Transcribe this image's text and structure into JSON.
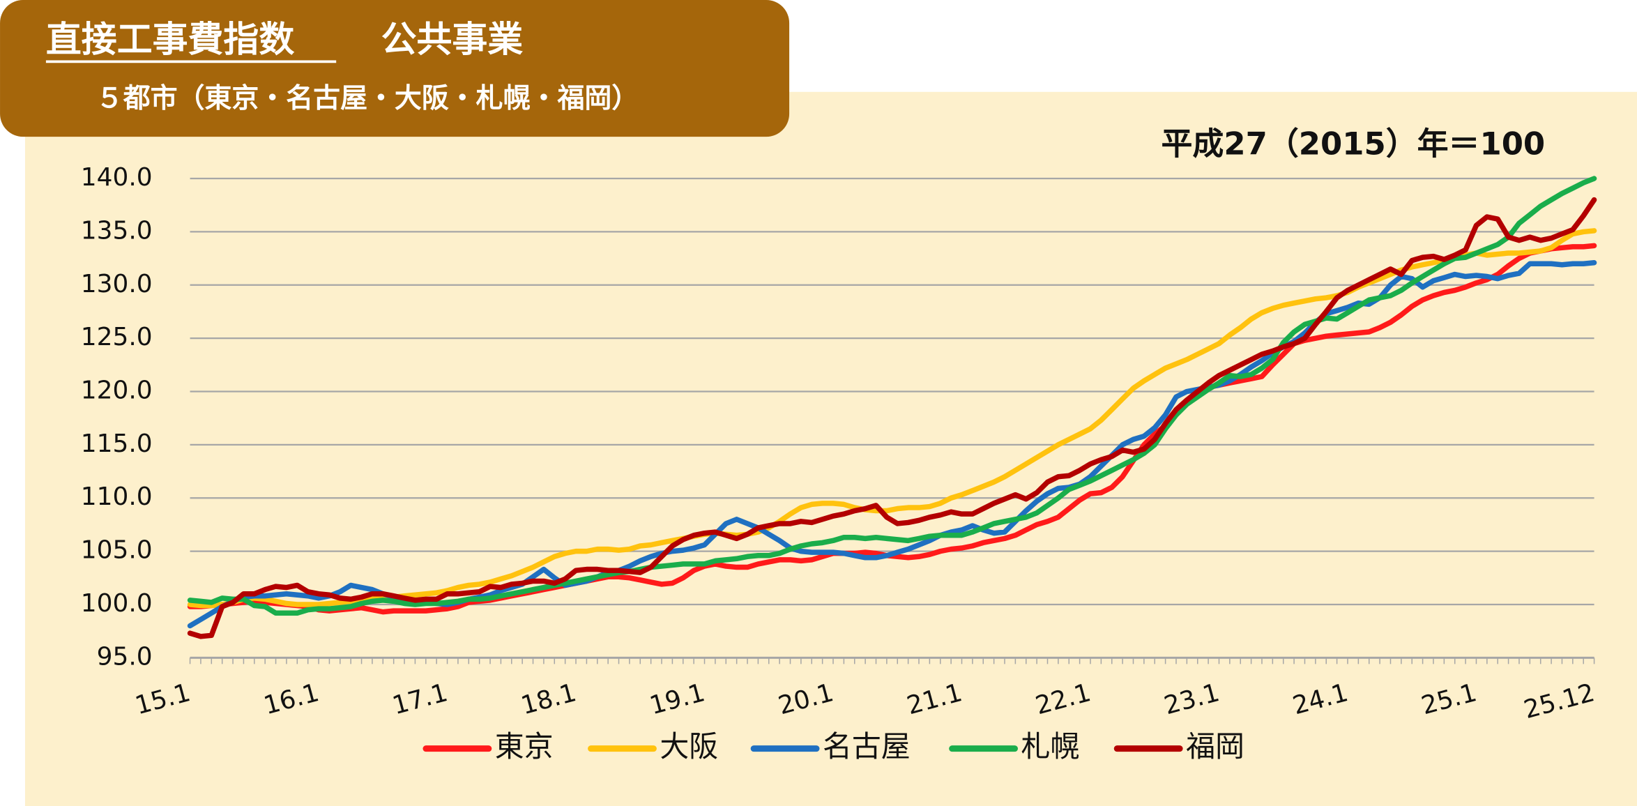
{
  "header": {
    "title": "直接工事費指数",
    "subtitle": "公共事業",
    "cities": "５都市（東京・名古屋・大阪・札幌・福岡）"
  },
  "chart_data": {
    "type": "line",
    "note": "平成27（2015）年＝100",
    "categories": [
      "15.1",
      null,
      null,
      null,
      null,
      null,
      null,
      null,
      null,
      null,
      null,
      null,
      "16.1",
      null,
      null,
      null,
      null,
      null,
      null,
      null,
      null,
      null,
      null,
      null,
      "17.1",
      null,
      null,
      null,
      null,
      null,
      null,
      null,
      null,
      null,
      null,
      null,
      "18.1",
      null,
      null,
      null,
      null,
      null,
      null,
      null,
      null,
      null,
      null,
      null,
      "19.1",
      null,
      null,
      null,
      null,
      null,
      null,
      null,
      null,
      null,
      null,
      null,
      "20.1",
      null,
      null,
      null,
      null,
      null,
      null,
      null,
      null,
      null,
      null,
      null,
      "21.1",
      null,
      null,
      null,
      null,
      null,
      null,
      null,
      null,
      null,
      null,
      null,
      "22.1",
      null,
      null,
      null,
      null,
      null,
      null,
      null,
      null,
      null,
      null,
      null,
      "23.1",
      null,
      null,
      null,
      null,
      null,
      null,
      null,
      null,
      null,
      null,
      null,
      "24.1",
      null,
      null,
      null,
      null,
      null,
      null,
      null,
      null,
      null,
      null,
      null,
      "25.1",
      null,
      null,
      null,
      null,
      null,
      null,
      null,
      null,
      null,
      null,
      "25.12"
    ],
    "series": [
      {
        "name": "東京",
        "color": "#ff1a1a",
        "values": [
          99.8,
          99.8,
          99.9,
          100.0,
          100.1,
          100.2,
          100.3,
          100.2,
          100.1,
          100.0,
          99.9,
          99.8,
          99.5,
          99.4,
          99.5,
          99.6,
          99.7,
          99.5,
          99.3,
          99.4,
          99.4,
          99.4,
          99.4,
          99.5,
          99.6,
          99.8,
          100.2,
          100.3,
          100.4,
          100.6,
          100.8,
          101.0,
          101.2,
          101.4,
          101.6,
          101.8,
          102.0,
          102.2,
          102.4,
          102.6,
          102.6,
          102.5,
          102.3,
          102.1,
          101.9,
          102.0,
          102.5,
          103.2,
          103.6,
          103.8,
          103.6,
          103.5,
          103.5,
          103.8,
          104.0,
          104.2,
          104.2,
          104.1,
          104.2,
          104.5,
          104.8,
          104.8,
          104.8,
          104.9,
          104.8,
          104.6,
          104.5,
          104.4,
          104.5,
          104.7,
          105.0,
          105.2,
          105.3,
          105.5,
          105.8,
          106.0,
          106.2,
          106.5,
          107.0,
          107.5,
          107.8,
          108.2,
          109.0,
          109.8,
          110.4,
          110.5,
          111.0,
          112.0,
          113.5,
          115.0,
          116.0,
          116.8,
          118.0,
          119.0,
          120.0,
          120.4,
          120.6,
          120.8,
          121.0,
          121.2,
          121.4,
          122.5,
          123.5,
          124.5,
          124.8,
          125.0,
          125.2,
          125.3,
          125.4,
          125.5,
          125.6,
          126.0,
          126.5,
          127.2,
          128.0,
          128.6,
          129.0,
          129.3,
          129.5,
          129.8,
          130.2,
          130.5,
          131.0,
          131.8,
          132.5,
          133.0,
          133.2,
          133.4,
          133.5,
          133.6,
          133.6,
          133.7
        ]
      },
      {
        "name": "大阪",
        "color": "#ffc20e",
        "values": [
          100.0,
          99.9,
          99.9,
          100.0,
          100.2,
          100.5,
          100.6,
          100.5,
          100.3,
          100.1,
          100.0,
          100.0,
          100.0,
          100.1,
          100.2,
          100.3,
          100.4,
          100.5,
          100.6,
          100.7,
          100.8,
          100.9,
          101.0,
          101.1,
          101.3,
          101.6,
          101.8,
          101.9,
          102.1,
          102.4,
          102.7,
          103.1,
          103.5,
          104.0,
          104.5,
          104.8,
          105.0,
          105.0,
          105.2,
          105.2,
          105.1,
          105.2,
          105.5,
          105.6,
          105.8,
          106.0,
          106.2,
          106.4,
          106.6,
          106.7,
          106.6,
          106.5,
          106.6,
          106.8,
          107.2,
          107.8,
          108.5,
          109.1,
          109.4,
          109.5,
          109.5,
          109.4,
          109.1,
          108.9,
          108.8,
          108.8,
          109.0,
          109.1,
          109.1,
          109.2,
          109.5,
          110.0,
          110.3,
          110.7,
          111.1,
          111.5,
          112.0,
          112.6,
          113.2,
          113.8,
          114.4,
          115.0,
          115.5,
          116.0,
          116.5,
          117.3,
          118.3,
          119.3,
          120.3,
          121.0,
          121.6,
          122.2,
          122.6,
          123.0,
          123.5,
          124.0,
          124.5,
          125.3,
          126.0,
          126.8,
          127.4,
          127.8,
          128.1,
          128.3,
          128.5,
          128.7,
          128.8,
          129.0,
          129.3,
          129.8,
          130.2,
          130.6,
          131.0,
          131.4,
          131.7,
          131.9,
          132.1,
          132.3,
          132.6,
          132.8,
          133.0,
          132.8,
          132.9,
          133.0,
          133.0,
          133.1,
          133.2,
          133.5,
          134.2,
          134.8,
          135.0,
          135.1
        ]
      },
      {
        "name": "名古屋",
        "color": "#1f70c1",
        "values": [
          98.0,
          98.6,
          99.2,
          99.8,
          100.3,
          100.7,
          100.8,
          100.8,
          100.9,
          101.0,
          100.9,
          100.8,
          100.6,
          100.8,
          101.2,
          101.8,
          101.6,
          101.4,
          101.0,
          100.7,
          100.5,
          100.3,
          100.2,
          100.1,
          100.0,
          100.2,
          100.5,
          100.7,
          100.9,
          101.3,
          101.6,
          101.9,
          102.6,
          103.3,
          102.5,
          101.8,
          102.0,
          102.2,
          102.6,
          103.0,
          103.2,
          103.6,
          104.1,
          104.5,
          104.8,
          105.0,
          105.1,
          105.3,
          105.6,
          106.6,
          107.6,
          108.0,
          107.6,
          107.2,
          106.6,
          106.0,
          105.3,
          105.0,
          104.9,
          104.9,
          104.9,
          104.8,
          104.6,
          104.4,
          104.4,
          104.6,
          104.9,
          105.2,
          105.6,
          106.0,
          106.5,
          106.8,
          107.0,
          107.4,
          107.0,
          106.7,
          106.8,
          107.8,
          108.8,
          109.7,
          110.4,
          110.9,
          111.0,
          111.3,
          112.0,
          113.0,
          114.0,
          115.0,
          115.5,
          115.8,
          116.6,
          117.8,
          119.5,
          120.0,
          120.2,
          120.4,
          120.6,
          121.0,
          121.6,
          122.3,
          122.9,
          123.6,
          124.2,
          124.7,
          125.5,
          126.5,
          127.3,
          127.6,
          127.9,
          128.3,
          128.2,
          128.8,
          130.0,
          130.8,
          130.6,
          129.8,
          130.4,
          130.7,
          131.0,
          130.8,
          130.9,
          130.8,
          130.6,
          130.9,
          131.1,
          132.0,
          132.0,
          132.0,
          131.9,
          132.0,
          132.0,
          132.1
        ]
      },
      {
        "name": "札幌",
        "color": "#1aad4b",
        "values": [
          100.4,
          100.3,
          100.2,
          100.6,
          100.5,
          100.5,
          99.9,
          99.8,
          99.2,
          99.2,
          99.2,
          99.5,
          99.6,
          99.6,
          99.7,
          99.8,
          100.1,
          100.3,
          100.4,
          100.3,
          100.1,
          100.0,
          100.1,
          100.1,
          100.2,
          100.3,
          100.5,
          100.5,
          100.6,
          100.8,
          101.0,
          101.2,
          101.4,
          101.6,
          101.8,
          102.0,
          102.2,
          102.4,
          102.6,
          102.8,
          103.0,
          103.1,
          103.3,
          103.5,
          103.6,
          103.7,
          103.8,
          103.8,
          103.8,
          104.1,
          104.2,
          104.3,
          104.5,
          104.6,
          104.6,
          104.8,
          105.2,
          105.5,
          105.7,
          105.8,
          106.0,
          106.3,
          106.3,
          106.2,
          106.3,
          106.2,
          106.1,
          106.0,
          106.2,
          106.4,
          106.5,
          106.5,
          106.5,
          106.8,
          107.2,
          107.6,
          107.8,
          108.0,
          108.2,
          108.6,
          109.3,
          110.0,
          110.8,
          111.2,
          111.6,
          112.1,
          112.6,
          113.1,
          113.6,
          114.2,
          115.0,
          116.5,
          117.8,
          118.8,
          119.5,
          120.2,
          120.8,
          121.5,
          121.4,
          121.6,
          122.2,
          123.0,
          124.6,
          125.6,
          126.3,
          126.6,
          126.9,
          126.8,
          127.4,
          128.0,
          128.6,
          128.8,
          129.0,
          129.5,
          130.2,
          130.8,
          131.4,
          132.0,
          132.5,
          132.6,
          133.0,
          133.4,
          133.8,
          134.5,
          135.8,
          136.6,
          137.4,
          138.0,
          138.6,
          139.1,
          139.6,
          140.0
        ]
      },
      {
        "name": "福岡",
        "color": "#b30000",
        "values": [
          97.3,
          97.0,
          97.1,
          99.8,
          100.2,
          101.0,
          101.0,
          101.4,
          101.7,
          101.6,
          101.8,
          101.2,
          101.0,
          100.9,
          100.6,
          100.5,
          100.7,
          101.0,
          101.0,
          100.8,
          100.6,
          100.4,
          100.5,
          100.5,
          101.0,
          101.0,
          101.1,
          101.2,
          101.7,
          101.6,
          101.9,
          102.0,
          102.2,
          102.2,
          102.0,
          102.4,
          103.2,
          103.3,
          103.3,
          103.2,
          103.2,
          103.1,
          103.0,
          103.5,
          104.5,
          105.5,
          106.1,
          106.5,
          106.7,
          106.8,
          106.5,
          106.2,
          106.6,
          107.2,
          107.4,
          107.6,
          107.6,
          107.8,
          107.7,
          108.0,
          108.3,
          108.5,
          108.8,
          109.0,
          109.3,
          108.2,
          107.6,
          107.7,
          107.9,
          108.2,
          108.4,
          108.7,
          108.5,
          108.5,
          109.0,
          109.5,
          109.9,
          110.3,
          109.9,
          110.5,
          111.5,
          112.0,
          112.1,
          112.6,
          113.2,
          113.6,
          113.9,
          114.5,
          114.3,
          114.6,
          115.5,
          117.0,
          118.3,
          119.2,
          120.0,
          120.8,
          121.5,
          122.0,
          122.5,
          123.0,
          123.5,
          123.8,
          124.2,
          124.5,
          125.0,
          126.3,
          127.5,
          128.8,
          129.5,
          130.0,
          130.5,
          131.0,
          131.5,
          131.0,
          132.3,
          132.6,
          132.7,
          132.4,
          132.8,
          133.3,
          135.6,
          136.4,
          136.2,
          134.5,
          134.2,
          134.5,
          134.2,
          134.4,
          134.8,
          135.2,
          136.5,
          138.0
        ]
      }
    ],
    "ylim": [
      95,
      140
    ],
    "yticks": [
      {
        "value": 95,
        "label": "95.0"
      },
      {
        "value": 100,
        "label": "100.0"
      },
      {
        "value": 105,
        "label": "105.0"
      },
      {
        "value": 110,
        "label": "110.0"
      },
      {
        "value": 115,
        "label": "115.0"
      },
      {
        "value": 120,
        "label": "120.0"
      },
      {
        "value": 125,
        "label": "125.0"
      },
      {
        "value": 130,
        "label": "130.0"
      },
      {
        "value": 135,
        "label": "135.0"
      },
      {
        "value": 140,
        "label": "140.0"
      }
    ],
    "grid": true
  }
}
